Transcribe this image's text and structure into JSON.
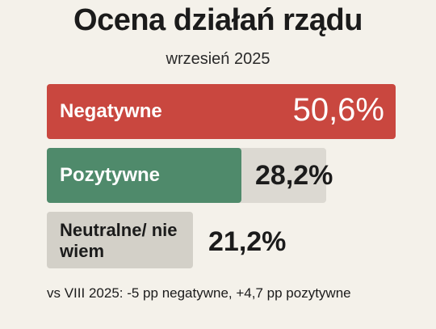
{
  "chart_data": {
    "type": "bar",
    "title": "Ocena działań rządu",
    "subtitle": "wrzesień 2025",
    "categories": [
      "Negatywne",
      "Pozytywne",
      "Neutralne/ nie wiem"
    ],
    "values": [
      50.6,
      28.2,
      21.2
    ],
    "value_labels": [
      "50,6%",
      "28,2%",
      "21,2%"
    ],
    "unit": "%",
    "colors": {
      "negatywne": "#c9473f",
      "pozytywne": "#4f8a6b",
      "neutralne": "#d3d0c8",
      "track": "#dcd9d2"
    },
    "note": "vs VIII 2025: -5 pp   negatywne, +4,7 pp pozytywne"
  }
}
